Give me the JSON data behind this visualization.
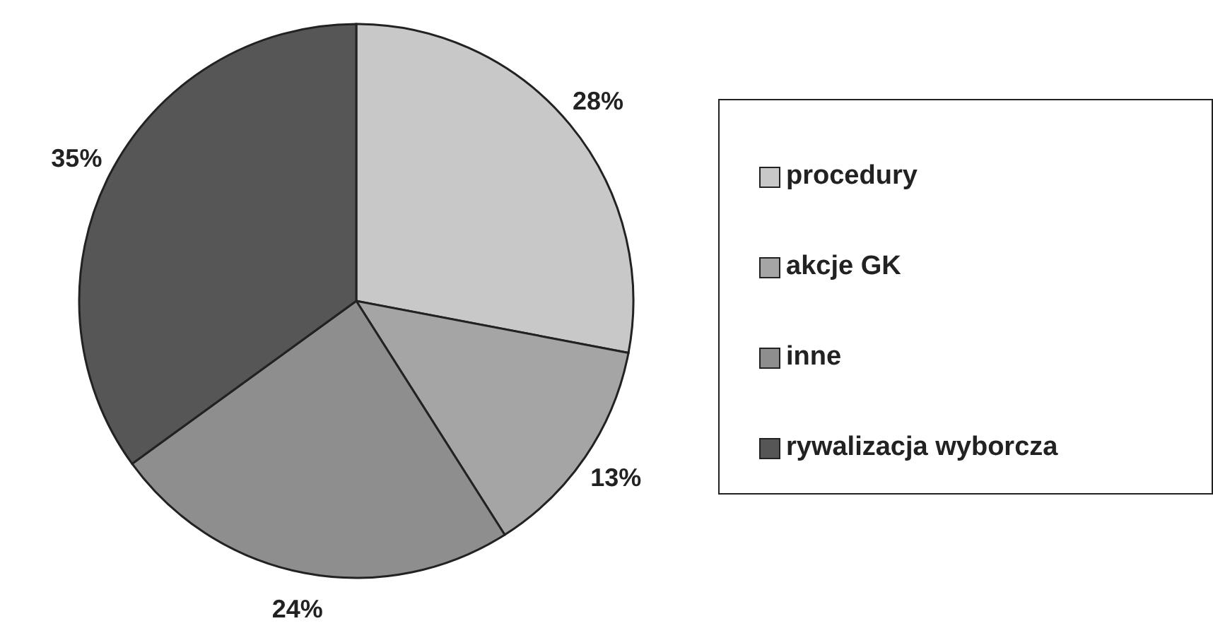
{
  "chart_data": {
    "type": "pie",
    "categories": [
      "procedury",
      "akcje GK",
      "inne",
      "rywalizacja wyborcza"
    ],
    "values": [
      28,
      13,
      24,
      35
    ],
    "colors": [
      "#c8c8c8",
      "#a5a5a5",
      "#8e8e8e",
      "#565656"
    ],
    "value_labels": [
      "28%",
      "13%",
      "24%",
      "35%"
    ],
    "legend": "right"
  }
}
